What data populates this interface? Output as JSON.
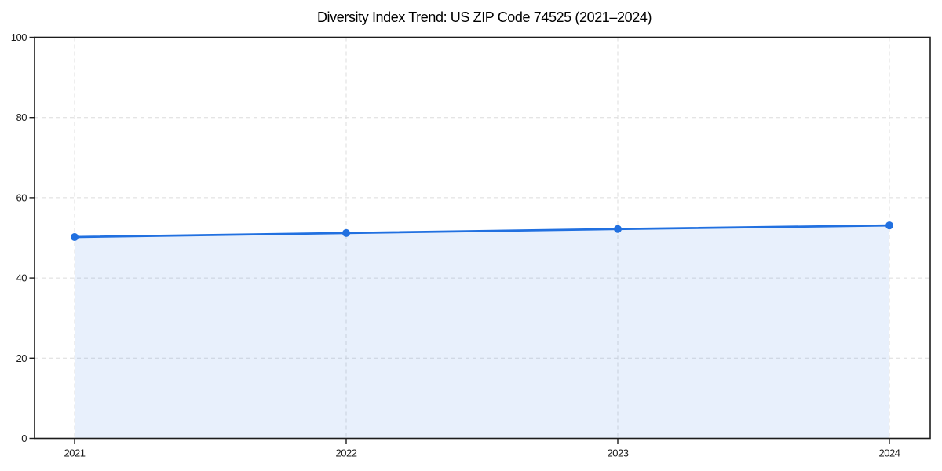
{
  "chart_data": {
    "type": "line",
    "title": "Diversity Index Trend: US ZIP Code 74525 (2021–2024)",
    "x": [
      "2021",
      "2022",
      "2023",
      "2024"
    ],
    "series": [
      {
        "name": "Diversity Index",
        "values": [
          50.2,
          51.2,
          52.2,
          53.1
        ],
        "marker": "circle",
        "area_fill": true
      }
    ],
    "xlabel": "",
    "ylabel": "",
    "ylim": [
      0,
      100
    ],
    "yticks": [
      0,
      20,
      40,
      60,
      80,
      100
    ],
    "grid": "dashed-both-axes",
    "legend": "none",
    "colors": {
      "line": "#2170e0",
      "marker": "#2170e0",
      "area_fill": "rgba(33,112,224,0.10)",
      "grid": "#dcdcdc",
      "spine": "#1c1c1c",
      "tick_label": "#1a1a1a",
      "title": "#000000",
      "background": "#ffffff"
    }
  }
}
